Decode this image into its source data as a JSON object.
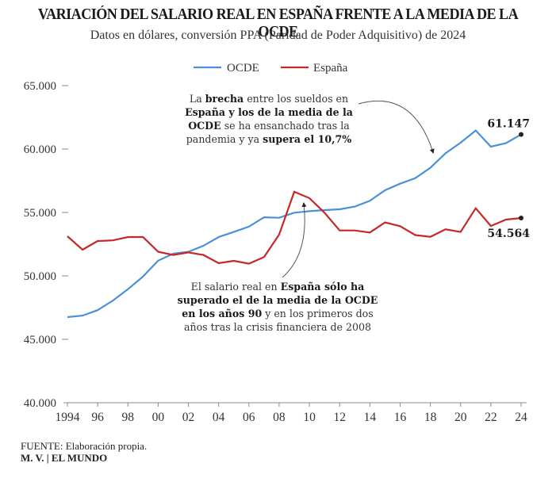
{
  "header": {
    "title": "VARIACIÓN DEL SALARIO REAL EN ESPAÑA FRENTE A LA MEDIA DE LA OCDE",
    "subtitle": "Datos en dólares, conversión PPA (Paridad de Poder Adquisitivo) de 2024"
  },
  "footer": {
    "source": "FUENTE: Elaboración propia.",
    "credit": "M. V. | EL MUNDO"
  },
  "annotations": [
    {
      "id": "brecha",
      "parts": [
        {
          "text": "La ",
          "bold": false
        },
        {
          "text": "brecha",
          "bold": true
        },
        {
          "text": " entre los sueldos en ",
          "bold": false
        },
        {
          "text": "España y los de la media de la OCDE",
          "bold": true
        },
        {
          "text": " se ha ensanchado tras la pandemia y ya ",
          "bold": false
        },
        {
          "text": "supera el 10,7%",
          "bold": true
        }
      ]
    },
    {
      "id": "superado",
      "parts": [
        {
          "text": "El salario real en ",
          "bold": false
        },
        {
          "text": "España sólo ha superado el de la media de la OCDE en los años 90",
          "bold": true
        },
        {
          "text": " y en los primeros dos años tras la crisis financiera de 2008",
          "bold": false
        }
      ]
    }
  ],
  "chart_data": {
    "type": "line",
    "title": "VARIACIÓN DEL SALARIO REAL EN ESPAÑA FRENTE A LA MEDIA DE LA OCDE",
    "subtitle": "Datos en dólares, conversión PPA (Paridad de Poder Adquisitivo) de 2024",
    "xlabel": "",
    "ylabel": "",
    "x": [
      1994,
      1995,
      1996,
      1997,
      1998,
      1999,
      2000,
      2001,
      2002,
      2003,
      2004,
      2005,
      2006,
      2007,
      2008,
      2009,
      2010,
      2011,
      2012,
      2013,
      2014,
      2015,
      2016,
      2017,
      2018,
      2019,
      2020,
      2021,
      2022,
      2023,
      2024
    ],
    "xlim": [
      1994,
      2024
    ],
    "xticks": [
      1994,
      1996,
      1998,
      2000,
      2002,
      2004,
      2006,
      2008,
      2010,
      2012,
      2014,
      2016,
      2018,
      2020,
      2022,
      2024
    ],
    "xtick_labels": [
      "1994",
      "96",
      "98",
      "00",
      "02",
      "04",
      "06",
      "08",
      "10",
      "12",
      "14",
      "16",
      "18",
      "20",
      "22",
      "24"
    ],
    "ylim": [
      40000,
      65000
    ],
    "yticks": [
      40000,
      45000,
      50000,
      55000,
      60000,
      65000
    ],
    "ytick_labels": [
      "40.000",
      "45.000",
      "50.000",
      "55.000",
      "60.000",
      "65.000"
    ],
    "grid": false,
    "legend_position": "top-center",
    "series": [
      {
        "name": "OCDE",
        "color": "#4a90d9",
        "values": [
          46750,
          46870,
          47300,
          48050,
          48950,
          49950,
          51200,
          51750,
          51900,
          52380,
          53060,
          53460,
          53880,
          54620,
          54580,
          54980,
          55100,
          55190,
          55250,
          55460,
          55920,
          56750,
          57270,
          57700,
          58520,
          59670,
          60500,
          61460,
          60190,
          60460,
          61147
        ],
        "end_label": "61.147"
      },
      {
        "name": "España",
        "color": "#c62828",
        "values": [
          53125,
          52060,
          52750,
          52800,
          53060,
          53060,
          51900,
          51650,
          51850,
          51650,
          51000,
          51190,
          50960,
          51480,
          53250,
          56630,
          56130,
          54980,
          53580,
          53580,
          53420,
          54210,
          53920,
          53220,
          53080,
          53670,
          53460,
          55330,
          53940,
          54440,
          54564
        ],
        "end_label": "54.564"
      }
    ]
  }
}
